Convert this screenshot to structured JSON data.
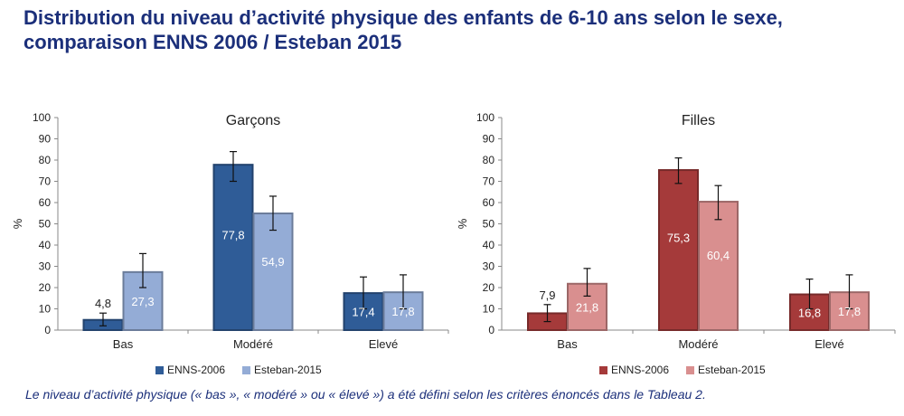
{
  "title_lines": [
    "Distribution du niveau d’activité physique des enfants de 6-10 ans selon le sexe,",
    "comparaison ENNS 2006 / Esteban 2015"
  ],
  "footnote": "Le niveau d’activité physique (« bas », « modéré » ou « élevé ») a été défini selon les critères énoncés dans le Tableau 2.",
  "chart_data": [
    {
      "type": "bar",
      "title": "Garçons",
      "ylabel": "%",
      "xlabel": "",
      "ylim": [
        0,
        100
      ],
      "yticks": [
        0,
        10,
        20,
        30,
        40,
        50,
        60,
        70,
        80,
        90,
        100
      ],
      "categories": [
        "Bas",
        "Modéré",
        "Elevé"
      ],
      "series": [
        {
          "name": "ENNS-2006",
          "color": "#2f5c97",
          "values": [
            4.8,
            77.8,
            17.4
          ],
          "labels": [
            "4,8",
            "77,8",
            "17,4"
          ],
          "error_low": [
            2,
            70,
            10
          ],
          "error_high": [
            8,
            84,
            25
          ]
        },
        {
          "name": "Esteban-2015",
          "color": "#94acd6",
          "values": [
            27.3,
            54.9,
            17.8
          ],
          "labels": [
            "27,3",
            "54,9",
            "17,8"
          ],
          "error_low": [
            20,
            47,
            10
          ],
          "error_high": [
            36,
            63,
            26
          ]
        }
      ],
      "grid": false,
      "legend": "bottom"
    },
    {
      "type": "bar",
      "title": "Filles",
      "ylabel": "%",
      "xlabel": "",
      "ylim": [
        0,
        100
      ],
      "yticks": [
        0,
        10,
        20,
        30,
        40,
        50,
        60,
        70,
        80,
        90,
        100
      ],
      "categories": [
        "Bas",
        "Modéré",
        "Elevé"
      ],
      "series": [
        {
          "name": "ENNS-2006",
          "color": "#a53a3a",
          "values": [
            7.9,
            75.3,
            16.8
          ],
          "labels": [
            "7,9",
            "75,3",
            "16,8"
          ],
          "error_low": [
            4,
            69,
            10
          ],
          "error_high": [
            12,
            81,
            24
          ]
        },
        {
          "name": "Esteban-2015",
          "color": "#d98f8f",
          "values": [
            21.8,
            60.4,
            17.8
          ],
          "labels": [
            "21,8",
            "60,4",
            "17,8"
          ],
          "error_low": [
            16,
            52,
            10
          ],
          "error_high": [
            29,
            68,
            26
          ]
        }
      ],
      "grid": false,
      "legend": "bottom"
    }
  ]
}
